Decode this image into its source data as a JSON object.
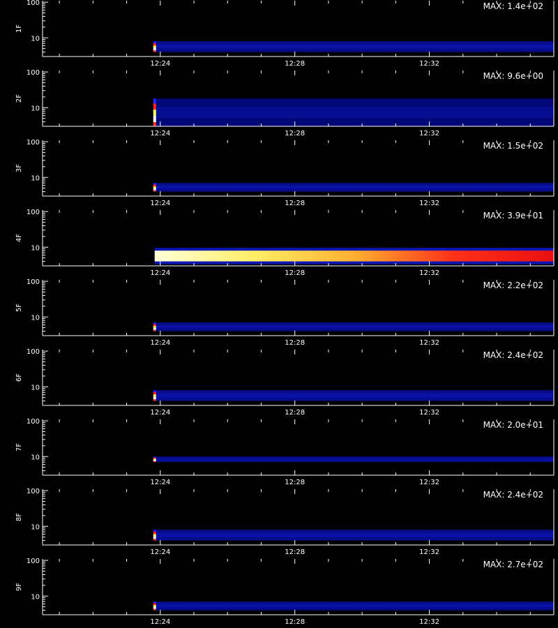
{
  "chart_data": [
    {
      "type": "heatmap",
      "panel_label": "1F",
      "max_label": "MAX: 1.4e+02",
      "yscale": "log",
      "y_tick_labels": [
        "10",
        "100"
      ],
      "x_tick_labels": [
        "12:24",
        "12:28",
        "12:32"
      ],
      "colormap": "blue-red-yellow-white",
      "onset_time": "12:23:50",
      "active_band_y": [
        4,
        8
      ],
      "relative_intensity": 0.3,
      "onset_spike": true
    },
    {
      "type": "heatmap",
      "panel_label": "2F",
      "max_label": "MAX: 9.6e+00",
      "yscale": "log",
      "y_tick_labels": [
        "10",
        "100"
      ],
      "x_tick_labels": [
        "12:24",
        "12:28",
        "12:32"
      ],
      "colormap": "blue-red-yellow-white",
      "onset_time": "12:23:50",
      "active_band_y": [
        3,
        18
      ],
      "relative_intensity": 0.18,
      "onset_spike": true
    },
    {
      "type": "heatmap",
      "panel_label": "3F",
      "max_label": "MAX: 1.5e+02",
      "yscale": "log",
      "y_tick_labels": [
        "10",
        "100"
      ],
      "x_tick_labels": [
        "12:24",
        "12:28",
        "12:32"
      ],
      "colormap": "blue-red-yellow-white",
      "onset_time": "12:23:50",
      "active_band_y": [
        4,
        7
      ],
      "relative_intensity": 0.3,
      "onset_spike": true
    },
    {
      "type": "heatmap",
      "panel_label": "4F",
      "max_label": "MAX: 3.9e+01",
      "yscale": "log",
      "y_tick_labels": [
        "10",
        "100"
      ],
      "x_tick_labels": [
        "12:24",
        "12:28",
        "12:32"
      ],
      "colormap": "blue-red-yellow-white",
      "onset_time": "12:23:50",
      "active_band_y": [
        4,
        8
      ],
      "relative_intensity": 0.9,
      "onset_spike": false
    },
    {
      "type": "heatmap",
      "panel_label": "5F",
      "max_label": "MAX: 2.2e+02",
      "yscale": "log",
      "y_tick_labels": [
        "10",
        "100"
      ],
      "x_tick_labels": [
        "12:24",
        "12:28",
        "12:32"
      ],
      "colormap": "blue-red-yellow-white",
      "onset_time": "12:23:50",
      "active_band_y": [
        4,
        7
      ],
      "relative_intensity": 0.28,
      "onset_spike": true
    },
    {
      "type": "heatmap",
      "panel_label": "6F",
      "max_label": "MAX: 2.4e+02",
      "yscale": "log",
      "y_tick_labels": [
        "10",
        "100"
      ],
      "x_tick_labels": [
        "12:24",
        "12:28",
        "12:32"
      ],
      "colormap": "blue-red-yellow-white",
      "onset_time": "12:23:50",
      "active_band_y": [
        4,
        8
      ],
      "relative_intensity": 0.3,
      "onset_spike": true
    },
    {
      "type": "heatmap",
      "panel_label": "7F",
      "max_label": "MAX: 2.0e+01",
      "yscale": "log",
      "y_tick_labels": [
        "10",
        "100"
      ],
      "x_tick_labels": [
        "12:24",
        "12:28",
        "12:32"
      ],
      "colormap": "blue-red-yellow-white",
      "onset_time": "12:23:50",
      "active_band_y": [
        7,
        10
      ],
      "relative_intensity": 0.28,
      "onset_spike": true
    },
    {
      "type": "heatmap",
      "panel_label": "8F",
      "max_label": "MAX: 2.4e+02",
      "yscale": "log",
      "y_tick_labels": [
        "10",
        "100"
      ],
      "x_tick_labels": [
        "12:24",
        "12:28",
        "12:32"
      ],
      "colormap": "blue-red-yellow-white",
      "onset_time": "12:23:50",
      "active_band_y": [
        4,
        8
      ],
      "relative_intensity": 0.3,
      "onset_spike": true
    },
    {
      "type": "heatmap",
      "panel_label": "9F",
      "max_label": "MAX: 2.7e+02",
      "yscale": "log",
      "y_tick_labels": [
        "10",
        "100"
      ],
      "x_tick_labels": [
        "12:24",
        "12:28",
        "12:32"
      ],
      "colormap": "blue-red-yellow-white",
      "onset_time": "12:23:50",
      "active_band_y": [
        4,
        7
      ],
      "relative_intensity": 0.3,
      "onset_spike": true
    }
  ],
  "colors": {
    "background": "#000000",
    "axes": "#ffffff",
    "text": "#ffffff"
  }
}
